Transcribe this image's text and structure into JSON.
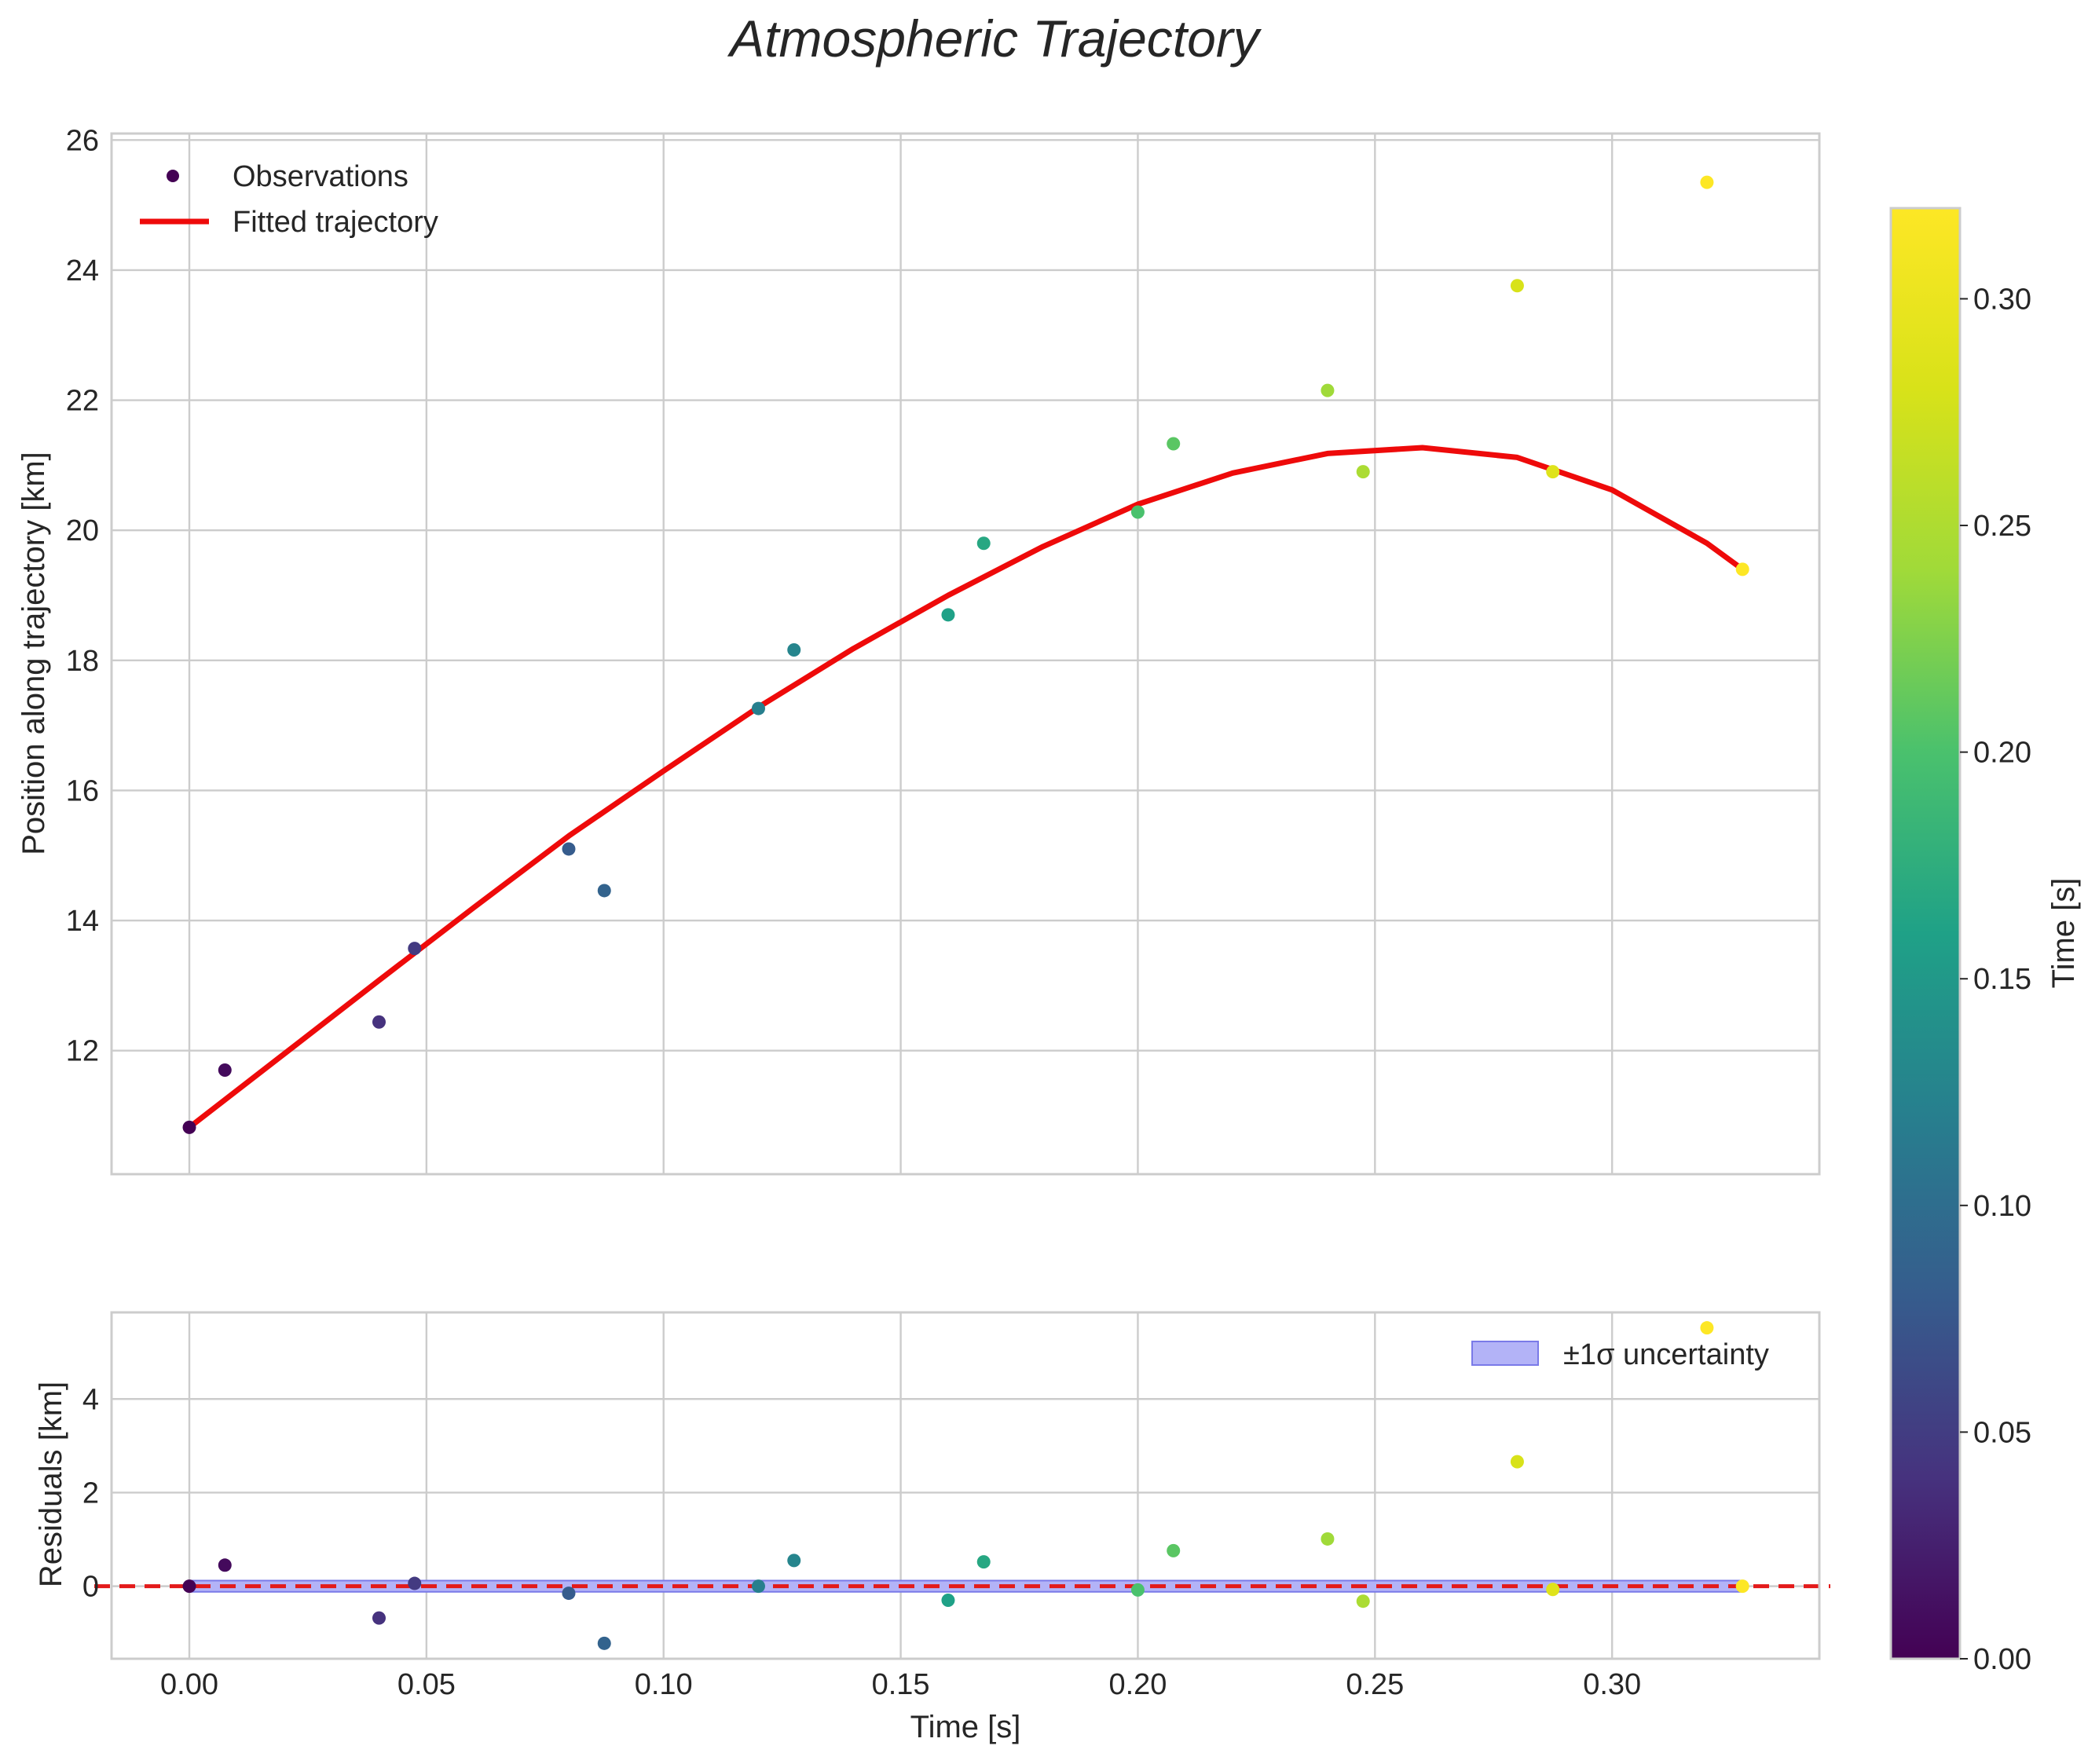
{
  "chart_data": {
    "type": "scatter",
    "title": "Atmospheric Trajectory",
    "main_panel": {
      "ylabel": "Position along trajectory [km]",
      "xlim": [
        -0.0164,
        0.3437
      ],
      "ylim": [
        10.1,
        26.1
      ],
      "yticks": [
        12,
        14,
        16,
        18,
        20,
        22,
        24,
        26
      ],
      "grid": true,
      "legend_position": "top-left",
      "legend": {
        "observations": "Observations",
        "fit": "Fitted trajectory"
      },
      "observations": [
        {
          "t": 0.0,
          "pos": 10.82
        },
        {
          "t": 0.0075,
          "pos": 11.7
        },
        {
          "t": 0.04,
          "pos": 12.44
        },
        {
          "t": 0.0475,
          "pos": 13.57
        },
        {
          "t": 0.08,
          "pos": 15.1
        },
        {
          "t": 0.0875,
          "pos": 14.46
        },
        {
          "t": 0.12,
          "pos": 17.26
        },
        {
          "t": 0.1275,
          "pos": 18.16
        },
        {
          "t": 0.16,
          "pos": 18.7
        },
        {
          "t": 0.1675,
          "pos": 19.8
        },
        {
          "t": 0.2,
          "pos": 20.28
        },
        {
          "t": 0.2075,
          "pos": 21.33
        },
        {
          "t": 0.24,
          "pos": 22.15
        },
        {
          "t": 0.2475,
          "pos": 20.9
        },
        {
          "t": 0.28,
          "pos": 23.76
        },
        {
          "t": 0.2875,
          "pos": 20.9
        },
        {
          "t": 0.32,
          "pos": 25.35
        },
        {
          "t": 0.3275,
          "pos": 19.4
        }
      ],
      "fit_curve": {
        "t": [
          0.0,
          0.02,
          0.04,
          0.06,
          0.08,
          0.1,
          0.12,
          0.14,
          0.16,
          0.18,
          0.2,
          0.22,
          0.24,
          0.26,
          0.28,
          0.3,
          0.32,
          0.3275
        ],
        "pos": [
          10.82,
          11.95,
          13.08,
          14.2,
          15.3,
          16.3,
          17.28,
          18.18,
          19.0,
          19.75,
          20.4,
          20.88,
          21.18,
          21.27,
          21.12,
          20.62,
          19.8,
          19.4
        ]
      }
    },
    "residual_panel": {
      "ylabel": "Residuals [km]",
      "xlabel": "Time [s]",
      "xlim": [
        -0.0164,
        0.3437
      ],
      "ylim": [
        -1.55,
        5.85
      ],
      "yticks": [
        0,
        2,
        4
      ],
      "xticks": [
        0.0,
        0.05,
        0.1,
        0.15,
        0.2,
        0.25,
        0.3
      ],
      "xtick_labels": [
        "0.00",
        "0.05",
        "0.10",
        "0.15",
        "0.20",
        "0.25",
        "0.30"
      ],
      "grid": true,
      "legend_position": "top-right",
      "legend": {
        "band": "±1σ uncertainty"
      },
      "uncertainty_band": [
        -0.12,
        0.12
      ],
      "zero_line": 0,
      "residuals": [
        {
          "t": 0.0,
          "r": 0.0
        },
        {
          "t": 0.0075,
          "r": 0.45
        },
        {
          "t": 0.04,
          "r": -0.68
        },
        {
          "t": 0.0475,
          "r": 0.06
        },
        {
          "t": 0.08,
          "r": -0.15
        },
        {
          "t": 0.0875,
          "r": -1.22
        },
        {
          "t": 0.12,
          "r": 0.0
        },
        {
          "t": 0.1275,
          "r": 0.55
        },
        {
          "t": 0.16,
          "r": -0.3
        },
        {
          "t": 0.1675,
          "r": 0.52
        },
        {
          "t": 0.2,
          "r": -0.08
        },
        {
          "t": 0.2075,
          "r": 0.76
        },
        {
          "t": 0.24,
          "r": 1.01
        },
        {
          "t": 0.2475,
          "r": -0.32
        },
        {
          "t": 0.28,
          "r": 2.66
        },
        {
          "t": 0.2875,
          "r": -0.07
        },
        {
          "t": 0.32,
          "r": 5.52
        },
        {
          "t": 0.3275,
          "r": 0.0
        }
      ]
    },
    "colorbar": {
      "label": "Time [s]",
      "range": [
        0.0,
        0.32
      ],
      "ticks": [
        0.0,
        0.05,
        0.1,
        0.15,
        0.2,
        0.25,
        0.3
      ],
      "tick_labels": [
        "0.00",
        "0.05",
        "0.10",
        "0.15",
        "0.20",
        "0.25",
        "0.30"
      ],
      "colormap": "viridis"
    }
  },
  "colors": {
    "fit_line": "#ee0a0a",
    "zero_line": "#e31a1a",
    "band_fill": "#b3b3f7",
    "band_edge": "#7a7ae8",
    "grid": "#cccccc",
    "text": "#262626"
  }
}
